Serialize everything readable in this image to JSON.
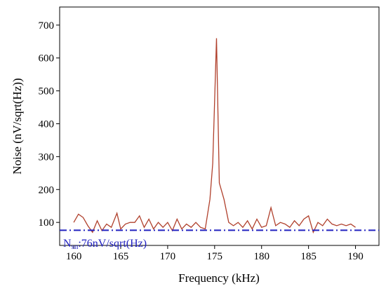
{
  "chart_data": {
    "type": "line",
    "x_label": "Frequency (kHz)",
    "y_label": "Noise (nV/sqrt(Hz))",
    "x": [
      160,
      160.5,
      161,
      161.5,
      162,
      162.5,
      163,
      163.5,
      164,
      164.6,
      165,
      165.5,
      166,
      166.5,
      167,
      167.5,
      168,
      168.5,
      169,
      169.5,
      170,
      170.5,
      171,
      171.5,
      172,
      172.5,
      173,
      173.5,
      174,
      174.5,
      174.8,
      175.2,
      175.5,
      176,
      176.5,
      177,
      177.5,
      178,
      178.5,
      179,
      179.5,
      180,
      180.5,
      181,
      181.5,
      182,
      182.5,
      183,
      183.5,
      184,
      184.5,
      185,
      185.5,
      186,
      186.5,
      187,
      187.5,
      188,
      188.5,
      189,
      189.5,
      190
    ],
    "series": [
      {
        "name": "Noise",
        "color": "#b0402c",
        "values": [
          100,
          125,
          115,
          90,
          70,
          105,
          75,
          95,
          85,
          128,
          80,
          95,
          100,
          100,
          120,
          85,
          110,
          80,
          100,
          85,
          100,
          75,
          110,
          80,
          95,
          85,
          100,
          85,
          80,
          170,
          280,
          660,
          220,
          170,
          100,
          90,
          100,
          85,
          105,
          80,
          110,
          85,
          90,
          145,
          90,
          100,
          95,
          85,
          105,
          90,
          110,
          120,
          70,
          100,
          90,
          110,
          95,
          90,
          95,
          90,
          95,
          85
        ]
      }
    ],
    "reference_line": {
      "value": 76,
      "color": "#2222c0",
      "style": "dashdot"
    },
    "annotation": {
      "main": "N",
      "sub": "sn",
      "rest": ":76nV/sqrt(Hz)"
    },
    "xlim": [
      158.5,
      192.5
    ],
    "xticks": [
      160,
      165,
      170,
      175,
      180,
      185,
      190
    ],
    "ylim": [
      30,
      755
    ],
    "yticks": [
      100,
      200,
      300,
      400,
      500,
      600,
      700
    ],
    "grid": false
  }
}
